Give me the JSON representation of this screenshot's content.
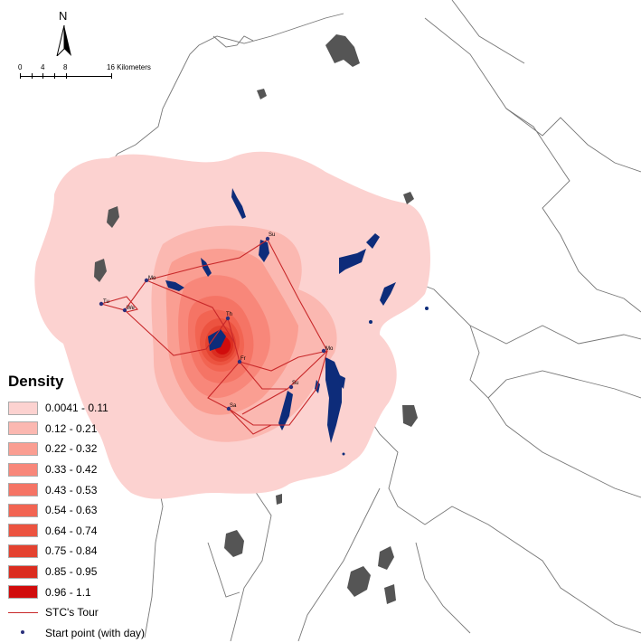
{
  "legend": {
    "title": "Density",
    "classes": [
      {
        "label": "0.0041 - 0.11",
        "color": "#fcd2d0"
      },
      {
        "label": "0.12 - 0.21",
        "color": "#fbb8b1"
      },
      {
        "label": "0.22 - 0.32",
        "color": "#fa9e92"
      },
      {
        "label": "0.33 - 0.42",
        "color": "#f8877a"
      },
      {
        "label": "0.43 - 0.53",
        "color": "#f57465"
      },
      {
        "label": "0.54 - 0.63",
        "color": "#f26452"
      },
      {
        "label": "0.64 - 0.74",
        "color": "#ec5340"
      },
      {
        "label": "0.75 - 0.84",
        "color": "#e44230"
      },
      {
        "label": "0.85 - 0.95",
        "color": "#db2d20"
      },
      {
        "label": "0.96 - 1.1",
        "color": "#d10c0c"
      }
    ],
    "tour_label": "STC's Tour",
    "start_label": "Start point (with day)"
  },
  "scalebar": {
    "labels": [
      "0",
      "4",
      "8",
      "16 Kilometers"
    ]
  },
  "north_arrow": {
    "letter": "N"
  },
  "sites": [
    {
      "label": "Su"
    },
    {
      "label": "Mo"
    },
    {
      "label": "Tu"
    },
    {
      "label": "We"
    },
    {
      "label": "Th"
    },
    {
      "label": "Fr"
    },
    {
      "label": "Mo"
    },
    {
      "label": "Su"
    },
    {
      "label": "Sa"
    }
  ],
  "colors": {
    "tour": "#c8282a",
    "start_point": "#2a2f7a",
    "lakes": "#0d2c7a",
    "islands": "#555555",
    "outline": "#666666"
  }
}
